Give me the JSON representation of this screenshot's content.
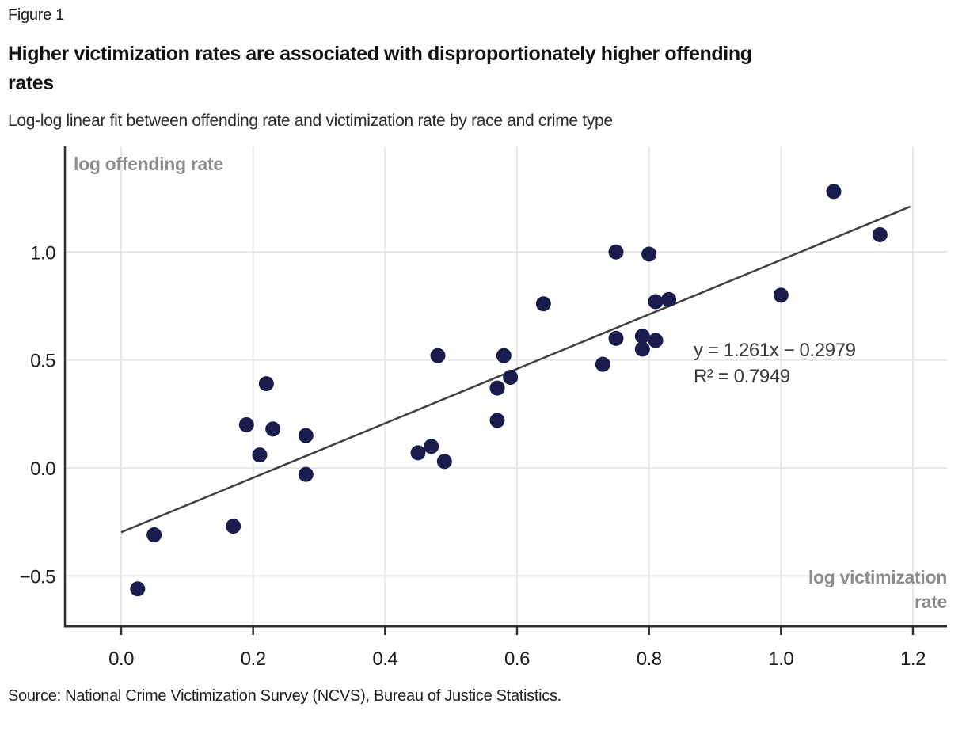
{
  "header": {
    "figure_label": "Figure 1",
    "title_line1": "Higher victimization rates are associated with disproportionately higher offending",
    "title_line2": "rates",
    "subtitle": "Log-log linear fit between offending rate and victimization rate by race and crime type"
  },
  "chart_data": {
    "type": "scatter",
    "title": "Higher victimization rates are associated with disproportionately higher offending rates",
    "xlabel": "log victimization rate",
    "ylabel": "log offending rate",
    "xlim": [
      -0.085,
      1.25
    ],
    "ylim": [
      -0.73,
      1.49
    ],
    "grid": true,
    "x_ticks": [
      0.0,
      0.2,
      0.4,
      0.6,
      0.8,
      1.0,
      1.2
    ],
    "x_tick_labels": [
      "0.0",
      "0.2",
      "0.4",
      "0.6",
      "0.8",
      "1.0",
      "1.2"
    ],
    "y_ticks": [
      1.0,
      0.5,
      0.0,
      -0.5
    ],
    "y_tick_labels": [
      "1.0",
      "0.5",
      "0.0",
      "−0.5"
    ],
    "points": [
      [
        0.025,
        -0.56
      ],
      [
        0.05,
        -0.31
      ],
      [
        0.17,
        -0.27
      ],
      [
        0.19,
        0.2
      ],
      [
        0.21,
        0.06
      ],
      [
        0.22,
        0.39
      ],
      [
        0.23,
        0.18
      ],
      [
        0.28,
        -0.03
      ],
      [
        0.28,
        0.15
      ],
      [
        0.45,
        0.07
      ],
      [
        0.47,
        0.1
      ],
      [
        0.48,
        0.52
      ],
      [
        0.49,
        0.03
      ],
      [
        0.57,
        0.22
      ],
      [
        0.57,
        0.37
      ],
      [
        0.58,
        0.52
      ],
      [
        0.59,
        0.42
      ],
      [
        0.64,
        0.76
      ],
      [
        0.73,
        0.48
      ],
      [
        0.75,
        0.6
      ],
      [
        0.75,
        1.0
      ],
      [
        0.79,
        0.55
      ],
      [
        0.79,
        0.61
      ],
      [
        0.8,
        0.99
      ],
      [
        0.81,
        0.59
      ],
      [
        0.81,
        0.77
      ],
      [
        0.83,
        0.78
      ],
      [
        1.0,
        0.8
      ],
      [
        1.08,
        1.28
      ],
      [
        1.15,
        1.08
      ]
    ],
    "fit_line": {
      "slope": 1.261,
      "intercept": -0.2979,
      "x_start": 0.0,
      "x_end": 1.196
    },
    "annotation": {
      "equation": "y = 1.261x − 0.2979",
      "r_squared": "R² = 0.7949"
    },
    "colors": {
      "point": "#1a1c4e",
      "line": "#404040",
      "grid": "#e7e7e7",
      "axis": "#2f2f2f",
      "tick_label": "#1d1d1d",
      "axis_title": "#8c8c8c",
      "annotation": "#3a3a3a"
    },
    "legend_position": "none"
  },
  "footer": {
    "source": "Source: National Crime Victimization Survey (NCVS), Bureau of Justice Statistics."
  }
}
